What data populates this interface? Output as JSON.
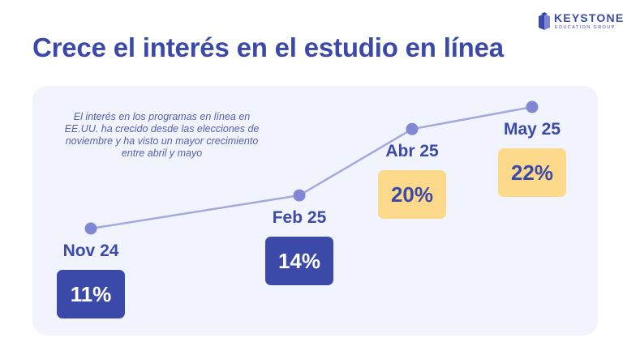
{
  "brand": {
    "name": "KEYSTONE",
    "subtitle": "EDUCATION GROUP",
    "color": "#3b4aa8",
    "icon": "book-icon"
  },
  "title": "Crece el interés en el estudio en línea",
  "note": "El interés en los programas en línea en EE.UU. ha crecido desde las elecciones de noviembre y ha visto un mayor crecimiento entre abril y mayo",
  "chart_data": {
    "type": "line",
    "categories": [
      "Nov 24",
      "Feb 25",
      "Abr 25",
      "May 25"
    ],
    "values": [
      11,
      14,
      20,
      22
    ],
    "value_labels": [
      "11%",
      "14%",
      "20%",
      "22%"
    ],
    "highlight": [
      false,
      false,
      true,
      true
    ],
    "grid": false,
    "colors": {
      "line": "#a4a8dd",
      "point": "#8088d4",
      "label_text": "#3b4aa8",
      "box_default": "#3b4aa8",
      "box_default_text": "#ffffff",
      "box_highlight": "#fdd98c",
      "box_highlight_text": "#3b4aa8"
    }
  }
}
